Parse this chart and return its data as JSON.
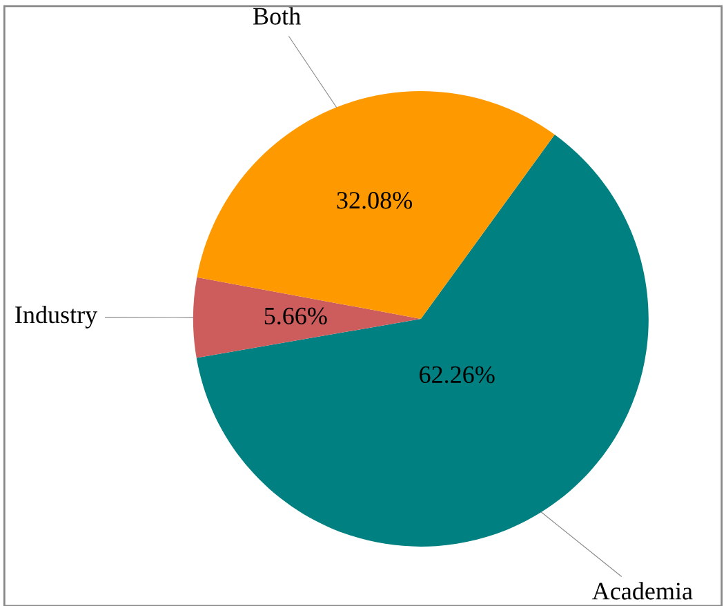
{
  "chart_data": {
    "type": "pie",
    "categories": [
      "Academia",
      "Industry",
      "Both"
    ],
    "values": [
      62.26,
      5.66,
      32.08
    ],
    "colors": [
      "#008080",
      "#cd5c5c",
      "#ff9900"
    ],
    "value_labels": [
      "62.26%",
      "5.66%",
      "32.08%"
    ],
    "legend": false
  }
}
